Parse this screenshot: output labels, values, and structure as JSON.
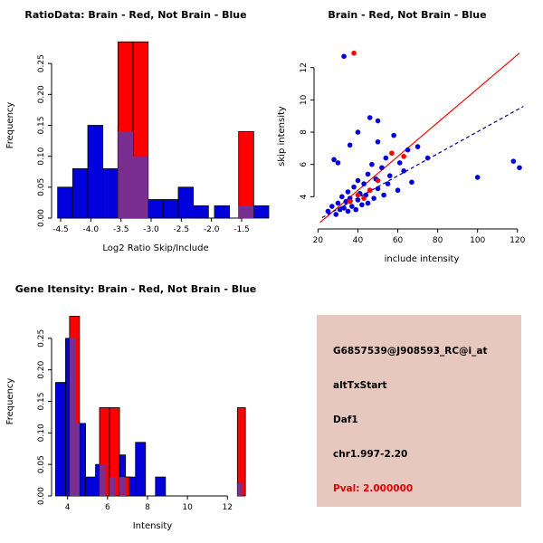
{
  "page": {
    "background": "#FFFFFF"
  },
  "chart_data": [
    {
      "id": "ratio-histogram",
      "type": "bar",
      "title": "RatioData: Brain - Red, Not Brain - Blue",
      "xlabel": "Log2 Ratio Skip/Include",
      "ylabel": "Frequency",
      "xlim": [
        -4.65,
        -1.2
      ],
      "ylim": [
        0,
        0.3
      ],
      "xticks": [
        -4.5,
        -4.0,
        -3.5,
        -3.0,
        -2.5,
        -2.0,
        -1.5
      ],
      "xtick_labels": [
        "-4.5",
        "-4.0",
        "-3.5",
        "-3.0",
        "-2.5",
        "-2.0",
        "-1.5"
      ],
      "yticks": [
        0,
        0.05,
        0.1,
        0.15,
        0.2,
        0.25
      ],
      "ytick_labels": [
        "0.00",
        "0.05",
        "0.10",
        "0.15",
        "0.20",
        "0.25"
      ],
      "bin_width": 0.25,
      "grid": false,
      "series": [
        {
          "name": "not-brain",
          "color": "#0000DD",
          "bars": [
            {
              "x": -4.55,
              "h": 0.05
            },
            {
              "x": -4.3,
              "h": 0.08
            },
            {
              "x": -4.05,
              "h": 0.15
            },
            {
              "x": -3.8,
              "h": 0.08
            },
            {
              "x": -3.55,
              "h": 0.15
            },
            {
              "x": -3.3,
              "h": 0.1
            },
            {
              "x": -3.05,
              "h": 0.03
            },
            {
              "x": -2.8,
              "h": 0.03
            },
            {
              "x": -2.55,
              "h": 0.05
            },
            {
              "x": -2.3,
              "h": 0.02
            },
            {
              "x": -1.95,
              "h": 0.02
            },
            {
              "x": -1.3,
              "h": 0.02
            }
          ]
        },
        {
          "name": "brain",
          "color": "#FF0000",
          "bars": [
            {
              "x": -3.55,
              "h": 0.285
            },
            {
              "x": -3.3,
              "h": 0.285
            },
            {
              "x": -1.55,
              "h": 0.14
            }
          ]
        },
        {
          "name": "overlap",
          "color": "#7A2E8F",
          "stroke": false,
          "bars": [
            {
              "x": -3.55,
              "h": 0.14
            },
            {
              "x": -3.3,
              "h": 0.1
            },
            {
              "x": -1.55,
              "h": 0.02
            }
          ]
        }
      ]
    },
    {
      "id": "intensity-scatter",
      "type": "scatter",
      "title": "Brain - Red, Not Brain - Blue",
      "xlabel": "include intensity",
      "ylabel": "skip intensity",
      "xlim": [
        18,
        126
      ],
      "ylim": [
        2,
        13.5
      ],
      "xticks": [
        20,
        40,
        60,
        80,
        100,
        120
      ],
      "xtick_labels": [
        "20",
        "40",
        "60",
        "80",
        "100",
        "120"
      ],
      "yticks": [
        4,
        6,
        8,
        10,
        12
      ],
      "ytick_labels": [
        "4",
        "6",
        "8",
        "10",
        "12"
      ],
      "grid": false,
      "series": [
        {
          "name": "not-brain",
          "color": "#0000DD",
          "points": [
            [
              25,
              3.1
            ],
            [
              27,
              3.4
            ],
            [
              29,
              2.9
            ],
            [
              30,
              3.6
            ],
            [
              31,
              3.2
            ],
            [
              32,
              4.0
            ],
            [
              33,
              3.3
            ],
            [
              34,
              3.7
            ],
            [
              35,
              3.1
            ],
            [
              35,
              4.3
            ],
            [
              36,
              3.9
            ],
            [
              37,
              3.4
            ],
            [
              38,
              4.6
            ],
            [
              39,
              3.2
            ],
            [
              40,
              3.8
            ],
            [
              40,
              5.0
            ],
            [
              41,
              4.2
            ],
            [
              42,
              3.5
            ],
            [
              43,
              4.8
            ],
            [
              44,
              4.1
            ],
            [
              45,
              3.6
            ],
            [
              45,
              5.4
            ],
            [
              46,
              4.4
            ],
            [
              47,
              6.0
            ],
            [
              48,
              3.9
            ],
            [
              49,
              5.1
            ],
            [
              50,
              4.5
            ],
            [
              50,
              7.4
            ],
            [
              52,
              5.8
            ],
            [
              53,
              4.1
            ],
            [
              54,
              6.4
            ],
            [
              55,
              4.8
            ],
            [
              56,
              5.3
            ],
            [
              58,
              7.8
            ],
            [
              60,
              4.4
            ],
            [
              61,
              6.1
            ],
            [
              63,
              5.6
            ],
            [
              65,
              6.9
            ],
            [
              67,
              4.9
            ],
            [
              70,
              7.1
            ],
            [
              75,
              6.4
            ],
            [
              28,
              6.3
            ],
            [
              30,
              6.1
            ],
            [
              36,
              7.2
            ],
            [
              40,
              8.0
            ],
            [
              46,
              8.9
            ],
            [
              50,
              8.7
            ],
            [
              100,
              5.2
            ],
            [
              118,
              6.2
            ],
            [
              121,
              5.8
            ],
            [
              33,
              12.7
            ]
          ]
        },
        {
          "name": "brain",
          "color": "#FF0000",
          "points": [
            [
              38,
              12.9
            ],
            [
              36,
              3.7
            ],
            [
              40,
              4.1
            ],
            [
              43,
              3.9
            ],
            [
              46,
              4.4
            ],
            [
              50,
              5.0
            ],
            [
              57,
              6.7
            ],
            [
              63,
              6.5
            ]
          ]
        }
      ],
      "lines": [
        {
          "name": "brain-fit",
          "color": "#FF0000",
          "dash": false,
          "from": [
            21,
            2.4
          ],
          "to": [
            121,
            12.9
          ]
        },
        {
          "name": "not-brain-fit",
          "color": "#00008B",
          "dash": true,
          "from": [
            22,
            2.7
          ],
          "to": [
            123,
            9.6
          ]
        }
      ]
    },
    {
      "id": "gene-intensity-histogram",
      "type": "bar",
      "title": "Gene Itensity: Brain - Red, Not Brain - Blue",
      "xlabel": "Intensity",
      "ylabel": "Frequency",
      "xlim": [
        3.2,
        13.3
      ],
      "ylim": [
        0,
        0.3
      ],
      "xticks": [
        4,
        6,
        8,
        10,
        12
      ],
      "xtick_labels": [
        "4",
        "6",
        "8",
        "10",
        "12"
      ],
      "yticks": [
        0,
        0.05,
        0.1,
        0.15,
        0.2,
        0.25
      ],
      "ytick_labels": [
        "0.00",
        "0.05",
        "0.10",
        "0.15",
        "0.20",
        "0.25"
      ],
      "bin_width": 0.5,
      "grid": false,
      "series": [
        {
          "name": "not-brain",
          "color": "#0000DD",
          "bars": [
            {
              "x": 3.4,
              "h": 0.18
            },
            {
              "x": 3.9,
              "h": 0.25
            },
            {
              "x": 4.4,
              "h": 0.115
            },
            {
              "x": 4.9,
              "h": 0.03
            },
            {
              "x": 5.4,
              "h": 0.05
            },
            {
              "x": 5.9,
              "h": 0.03
            },
            {
              "x": 6.4,
              "h": 0.065
            },
            {
              "x": 6.9,
              "h": 0.03
            },
            {
              "x": 7.4,
              "h": 0.085
            },
            {
              "x": 8.4,
              "h": 0.03
            },
            {
              "x": 12.5,
              "h": 0.02,
              "w": 0.25
            }
          ]
        },
        {
          "name": "brain",
          "color": "#FF0000",
          "bars": [
            {
              "x": 4.1,
              "h": 0.285
            },
            {
              "x": 5.6,
              "h": 0.14
            },
            {
              "x": 6.1,
              "h": 0.14
            },
            {
              "x": 6.6,
              "h": 0.03
            },
            {
              "x": 12.5,
              "h": 0.14,
              "w": 0.4
            }
          ]
        },
        {
          "name": "overlap",
          "color": "#7A2E8F",
          "stroke": false,
          "bars": [
            {
              "x": 4.1,
              "h": 0.25,
              "w": 0.3
            },
            {
              "x": 4.4,
              "h": 0.115,
              "w": 0.2
            },
            {
              "x": 5.6,
              "h": 0.05,
              "w": 0.3
            },
            {
              "x": 6.1,
              "h": 0.03,
              "w": 0.3
            },
            {
              "x": 6.6,
              "h": 0.03,
              "w": 0.3
            },
            {
              "x": 12.5,
              "h": 0.02,
              "w": 0.25
            }
          ]
        }
      ]
    }
  ],
  "info_panel": {
    "background": "#E7C8BE",
    "lines": [
      "G6857539@J908593_RC@i_at",
      "altTxStart",
      "Daf1",
      "chr1.997-2.20"
    ],
    "pval": "Pval: 2.000000",
    "pval_color": "#E00000"
  }
}
